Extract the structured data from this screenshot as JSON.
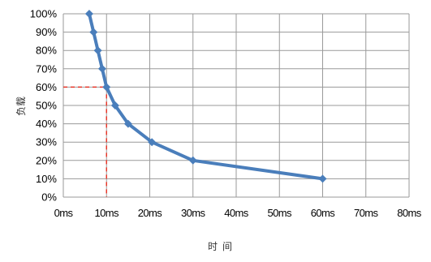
{
  "chart_data": {
    "type": "line",
    "xlabel": "时间",
    "ylabel": "负载",
    "xlim": [
      0,
      80
    ],
    "ylim": [
      0,
      100
    ],
    "x_ticks": [
      "0ms",
      "10ms",
      "20ms",
      "30ms",
      "40ms",
      "50ms",
      "60ms",
      "70ms",
      "80ms"
    ],
    "y_ticks": [
      "0%",
      "10%",
      "20%",
      "30%",
      "40%",
      "50%",
      "60%",
      "70%",
      "80%",
      "90%",
      "100%"
    ],
    "grid": true,
    "legend": "none",
    "series": [
      {
        "color": "#4a7ebb",
        "marker": "diamond",
        "x": [
          6,
          7,
          8,
          9,
          10,
          12,
          15,
          20.5,
          30,
          60
        ],
        "y": [
          100,
          90,
          80,
          70,
          60,
          50,
          40,
          30,
          20,
          10
        ]
      }
    ],
    "reference_lines": {
      "color": "#e8382b",
      "style": "dashed",
      "x": 10,
      "y": 60
    }
  }
}
